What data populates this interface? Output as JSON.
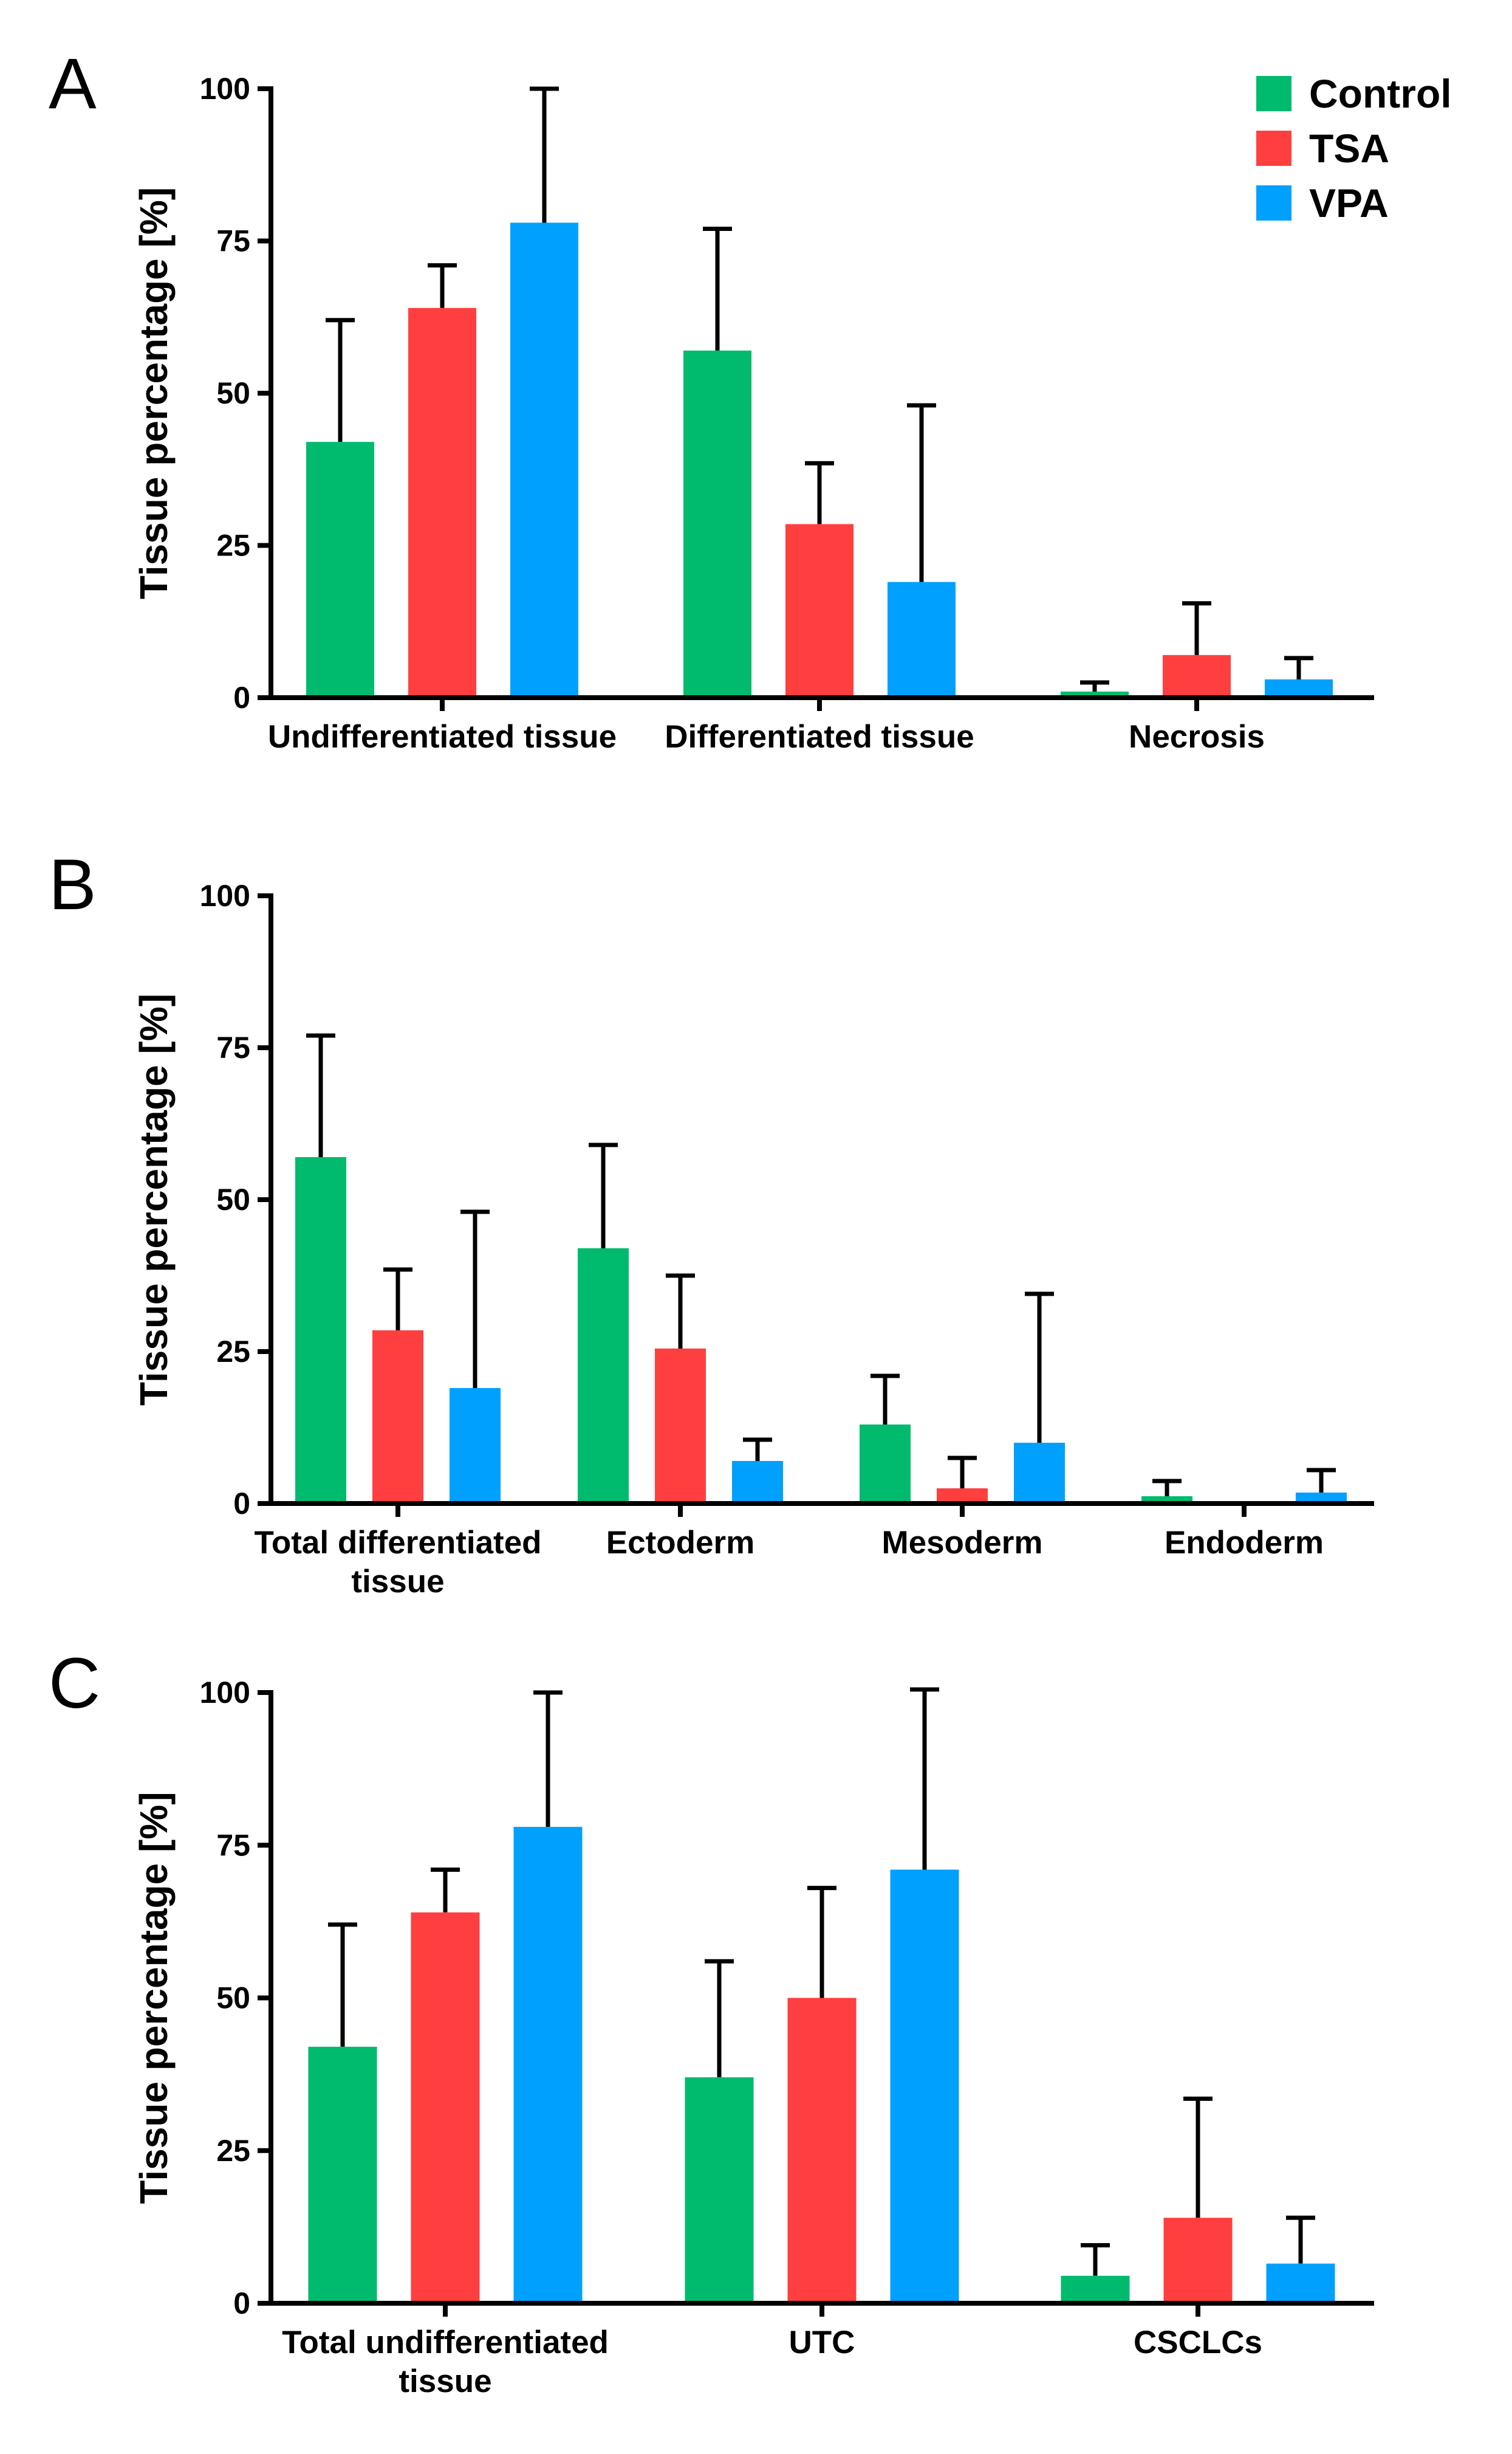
{
  "colors": {
    "Control": "#00ba6e",
    "TSA": "#ff3f3f",
    "VPA": "#00a0ff",
    "axis": "#000000"
  },
  "legend": [
    "Control",
    "TSA",
    "VPA"
  ],
  "chart_data": [
    {
      "panel": "A",
      "type": "bar",
      "ylabel": "Tissue percentage [%]",
      "ylim": [
        0,
        100
      ],
      "yticks": [
        0,
        25,
        50,
        75,
        100
      ],
      "categories": [
        [
          "Undifferentiated tissue"
        ],
        [
          "Differentiated tissue"
        ],
        [
          "Necrosis"
        ]
      ],
      "series": [
        {
          "name": "Control",
          "values": [
            42,
            57,
            1
          ],
          "errors": [
            20,
            20,
            1.5
          ]
        },
        {
          "name": "TSA",
          "values": [
            64,
            28.5,
            7
          ],
          "errors": [
            7,
            10,
            8.5
          ]
        },
        {
          "name": "VPA",
          "values": [
            78,
            19,
            3
          ],
          "errors": [
            22,
            29,
            3.5
          ]
        }
      ]
    },
    {
      "panel": "B",
      "type": "bar",
      "ylabel": "Tissue percentage [%]",
      "ylim": [
        0,
        100
      ],
      "yticks": [
        0,
        25,
        50,
        75,
        100
      ],
      "categories": [
        [
          "Total differentiated",
          "tissue"
        ],
        [
          "Ectoderm"
        ],
        [
          "Mesoderm"
        ],
        [
          "Endoderm"
        ]
      ],
      "series": [
        {
          "name": "Control",
          "values": [
            57,
            42,
            13,
            1.2
          ],
          "errors": [
            20,
            17,
            8,
            2.5
          ]
        },
        {
          "name": "TSA",
          "values": [
            28.5,
            25.5,
            2.5,
            0
          ],
          "errors": [
            10,
            12,
            5,
            0
          ]
        },
        {
          "name": "VPA",
          "values": [
            19,
            7,
            10,
            1.8
          ],
          "errors": [
            29,
            3.5,
            24.5,
            3.7
          ]
        }
      ]
    },
    {
      "panel": "C",
      "type": "bar",
      "ylabel": "Tissue percentage [%]",
      "ylim": [
        0,
        100
      ],
      "yticks": [
        0,
        25,
        50,
        75,
        100
      ],
      "categories": [
        [
          "Total undifferentiated",
          "tissue"
        ],
        [
          "UTC"
        ],
        [
          "CSCLCs"
        ]
      ],
      "series": [
        {
          "name": "Control",
          "values": [
            42,
            37,
            4.5
          ],
          "errors": [
            20,
            19,
            5
          ]
        },
        {
          "name": "TSA",
          "values": [
            64,
            50,
            14
          ],
          "errors": [
            7,
            18,
            19.5
          ]
        },
        {
          "name": "VPA",
          "values": [
            78,
            71,
            6.5
          ],
          "errors": [
            22,
            29.5,
            7.5
          ]
        }
      ]
    }
  ]
}
